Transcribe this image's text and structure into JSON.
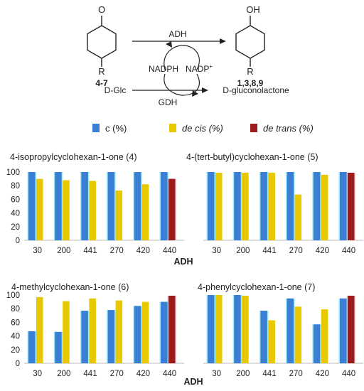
{
  "scheme": {
    "substrate_label": "4-7",
    "substrate_group": "R",
    "substrate_atom": "O",
    "product_label": "1,3,8,9",
    "product_group": "R",
    "product_atom": "OH",
    "enzyme_top": "ADH",
    "cofactor_reduced": "NADPH",
    "cofactor_oxidized": "NADP",
    "cofactor_charge": "+",
    "sugar": "D-Glc",
    "sugar_product": "D-gluconolactone",
    "enzyme_bottom": "GDH"
  },
  "legend": [
    {
      "label": "c (%)",
      "color": "#3b7fd4",
      "italic": false
    },
    {
      "label": "de cis (%)",
      "color": "#e8c800",
      "italic": true
    },
    {
      "label": "de trans (%)",
      "color": "#9c1c1c",
      "italic": true
    }
  ],
  "colors": {
    "c": "#3b7fd4",
    "de_cis": "#e8c800",
    "de_trans": "#9c1c1c",
    "c_glow": "#49e0f0",
    "trans_glow": "#f0a8c0"
  },
  "chart_data": [
    {
      "type": "bar",
      "title": "4-isopropylcyclohexan-1-one (4)",
      "categories": [
        "30",
        "200",
        "441",
        "270",
        "420",
        "440"
      ],
      "ylim": [
        0,
        100
      ],
      "yticks": [
        0,
        20,
        40,
        60,
        80,
        100
      ],
      "series": [
        {
          "key": "c",
          "values": [
            100,
            100,
            100,
            100,
            100,
            100
          ]
        },
        {
          "key": "de_cis",
          "values": [
            90,
            88,
            87,
            73,
            82,
            null
          ]
        },
        {
          "key": "de_trans",
          "values": [
            null,
            null,
            null,
            null,
            null,
            90
          ]
        }
      ]
    },
    {
      "type": "bar",
      "title": "4-(tert-butyl)cyclohexan-1-one (5)",
      "categories": [
        "30",
        "200",
        "441",
        "270",
        "420",
        "440"
      ],
      "ylim": [
        0,
        100
      ],
      "series": [
        {
          "key": "c",
          "values": [
            100,
            100,
            100,
            100,
            100,
            100
          ]
        },
        {
          "key": "de_cis",
          "values": [
            99,
            99,
            99,
            67,
            96,
            null
          ]
        },
        {
          "key": "de_trans",
          "values": [
            null,
            null,
            null,
            null,
            null,
            99
          ]
        }
      ]
    },
    {
      "type": "bar",
      "title": "4-methylcyclohexan-1-one (6)",
      "categories": [
        "30",
        "200",
        "441",
        "270",
        "420",
        "440"
      ],
      "ylim": [
        0,
        100
      ],
      "yticks": [
        0,
        20,
        40,
        60,
        80,
        100
      ],
      "series": [
        {
          "key": "c",
          "values": [
            47,
            46,
            77,
            78,
            84,
            90
          ]
        },
        {
          "key": "de_cis",
          "values": [
            97,
            91,
            95,
            92,
            90,
            null
          ]
        },
        {
          "key": "de_trans",
          "values": [
            null,
            null,
            null,
            null,
            null,
            99
          ]
        }
      ]
    },
    {
      "type": "bar",
      "title": "4-phenylcyclohexan-1-one (7)",
      "categories": [
        "30",
        "200",
        "441",
        "270",
        "420",
        "440"
      ],
      "ylim": [
        0,
        100
      ],
      "series": [
        {
          "key": "c",
          "values": [
            100,
            100,
            77,
            95,
            57,
            95
          ]
        },
        {
          "key": "de_cis",
          "values": [
            100,
            99,
            63,
            83,
            79,
            null
          ]
        },
        {
          "key": "de_trans",
          "values": [
            null,
            null,
            null,
            null,
            null,
            99
          ]
        }
      ]
    }
  ],
  "axis_titles": {
    "top": "ADH",
    "bottom": "ADH"
  }
}
